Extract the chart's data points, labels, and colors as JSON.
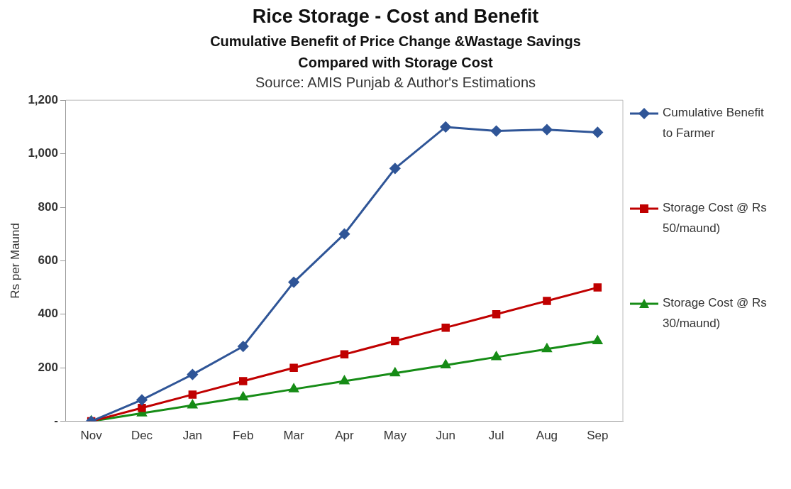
{
  "chart_data": {
    "type": "line",
    "title": "Rice Storage - Cost and Benefit",
    "subtitle": "Cumulative Benefit of Price Change &Wastage Savings Compared with Storage Cost",
    "annotations": [
      "Source: AMIS Punjab & Author's Estimations"
    ],
    "ylabel": "Rs per Maund",
    "categories": [
      "Nov",
      "Dec",
      "Jan",
      "Feb",
      "Mar",
      "Apr",
      "May",
      "Jun",
      "Jul",
      "Aug",
      "Sep"
    ],
    "series": [
      {
        "name": "Cumulative Benefit to Farmer",
        "color": "#2f5597",
        "marker": "diamond",
        "values": [
          0,
          80,
          175,
          280,
          520,
          700,
          945,
          1100,
          1085,
          1090,
          1080
        ]
      },
      {
        "name": "Storage Cost @ Rs 50/maund)",
        "color": "#c00000",
        "marker": "square",
        "values": [
          0,
          50,
          100,
          150,
          200,
          250,
          300,
          350,
          400,
          450,
          500
        ]
      },
      {
        "name": "Storage Cost @ Rs 30/maund)",
        "color": "#168c16",
        "marker": "triangle",
        "values": [
          0,
          30,
          60,
          90,
          120,
          150,
          180,
          210,
          240,
          270,
          300
        ]
      }
    ],
    "ylim": [
      0,
      1200
    ],
    "yticks": [
      {
        "value": 0,
        "label": "-"
      },
      200,
      400,
      600,
      800,
      {
        "value": 1000,
        "label": "1,000"
      },
      {
        "value": 1200,
        "label": "1,200"
      }
    ],
    "grid": false,
    "legend": "right",
    "line_style": "solid"
  }
}
